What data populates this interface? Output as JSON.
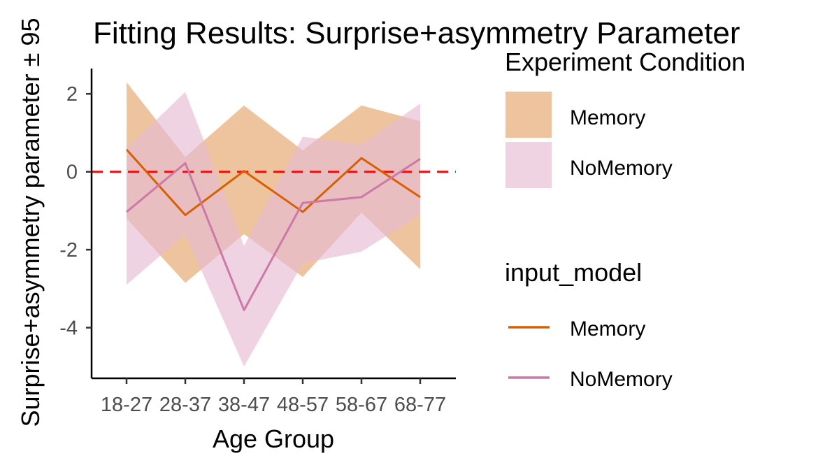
{
  "chart_data": {
    "type": "line",
    "title": "Fitting Results: Surprise+asymmetry Parameter",
    "xlabel": "Age Group",
    "ylabel": "Surprise+asymmetry parameter ± 95",
    "categories": [
      "18-27",
      "28-37",
      "38-47",
      "48-57",
      "58-67",
      "68-77"
    ],
    "ylim": [
      -5.3,
      2.65
    ],
    "yticks": [
      2,
      0,
      -2,
      -4
    ],
    "ytick_labels": [
      "2",
      "0",
      "-2",
      "-4"
    ],
    "reference_line": {
      "y": 0,
      "color": "#ee1111",
      "style": "dashed"
    },
    "series": [
      {
        "name": "Memory",
        "color": "#d95f02",
        "ribbon_color": "#e9b383",
        "values": [
          0.57,
          -1.11,
          0.02,
          -1.03,
          0.35,
          -0.65
        ],
        "lower": [
          -1.2,
          -2.85,
          -1.6,
          -2.7,
          -1.05,
          -2.5
        ],
        "upper": [
          2.3,
          0.38,
          1.7,
          0.55,
          1.7,
          1.3
        ]
      },
      {
        "name": "NoMemory",
        "color": "#cc79a7",
        "ribbon_color": "#e6bcd3",
        "values": [
          -1.03,
          0.22,
          -3.55,
          -0.8,
          -0.65,
          0.33
        ],
        "lower": [
          -2.9,
          -1.6,
          -5.0,
          -2.35,
          -2.05,
          -1.1
        ],
        "upper": [
          0.6,
          2.05,
          -1.9,
          0.9,
          0.7,
          1.75
        ]
      }
    ],
    "grid": false,
    "legend_placement": "right",
    "legends": [
      {
        "title": "Experiment Condition",
        "kind": "fill",
        "entries": [
          "Memory",
          "NoMemory"
        ]
      },
      {
        "title": "input_model",
        "kind": "line",
        "entries": [
          "Memory",
          "NoMemory"
        ]
      }
    ]
  }
}
